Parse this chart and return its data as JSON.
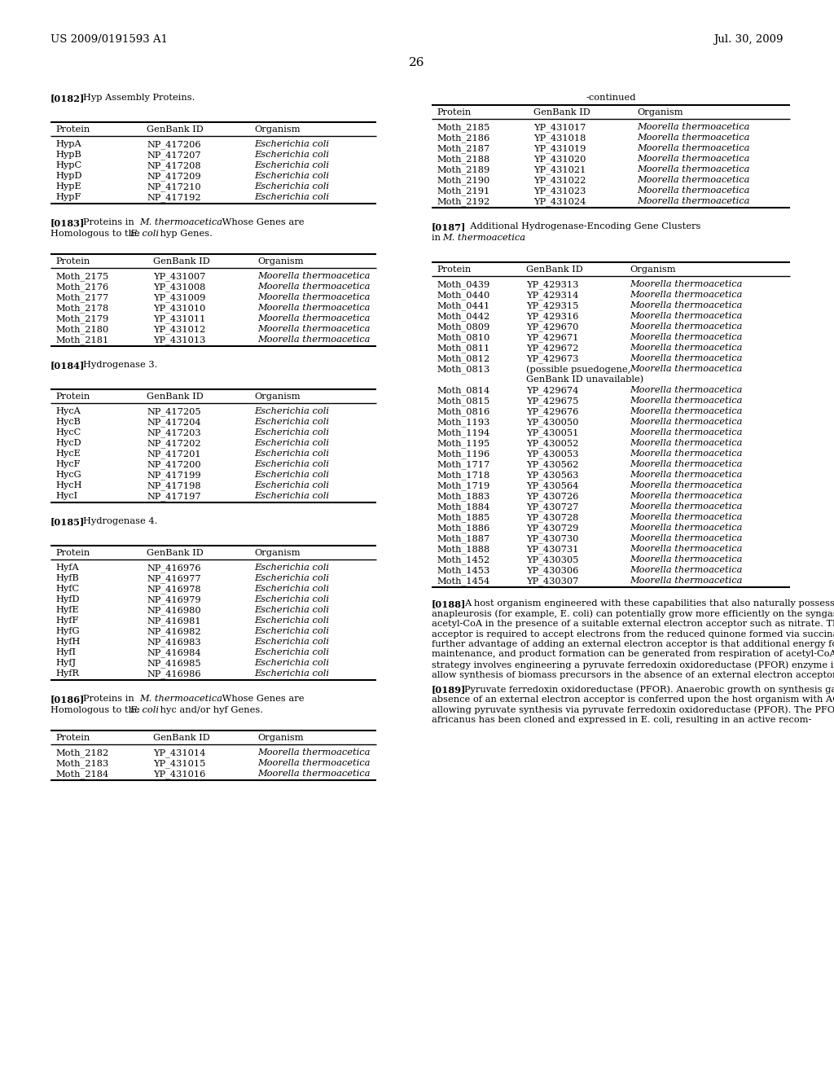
{
  "page_header_left": "US 2009/0191593 A1",
  "page_header_right": "Jul. 30, 2009",
  "page_number": "26",
  "section_182_label": "[0182]",
  "section_182_text": "Hyp Assembly Proteins.",
  "table1_headers": [
    "Protein",
    "GenBank ID",
    "Organism"
  ],
  "table1_rows": [
    [
      "HypA",
      "NP_417206",
      "Escherichia coli"
    ],
    [
      "HypB",
      "NP_417207",
      "Escherichia coli"
    ],
    [
      "HypC",
      "NP_417208",
      "Escherichia coli"
    ],
    [
      "HypD",
      "NP_417209",
      "Escherichia coli"
    ],
    [
      "HypE",
      "NP_417210",
      "Escherichia coli"
    ],
    [
      "HypF",
      "NP_417192",
      "Escherichia coli"
    ]
  ],
  "section_183_parts": [
    {
      "text": "[0183]",
      "style": "bold"
    },
    {
      "text": "  Proteins in ",
      "style": "normal"
    },
    {
      "text": "M. thermoacetica",
      "style": "italic"
    },
    {
      "text": " Whose Genes are",
      "style": "normal"
    }
  ],
  "section_183_line2_parts": [
    {
      "text": "Homologous to the ",
      "style": "normal"
    },
    {
      "text": "E. coli",
      "style": "italic"
    },
    {
      "text": " hyp Genes.",
      "style": "normal"
    }
  ],
  "table2_headers": [
    "Protein",
    "GenBank ID",
    "Organism"
  ],
  "table2_rows": [
    [
      "Moth_2175",
      "YP_431007",
      "Moorella thermoacetica"
    ],
    [
      "Moth_2176",
      "YP_431008",
      "Moorella thermoacetica"
    ],
    [
      "Moth_2177",
      "YP_431009",
      "Moorella thermoacetica"
    ],
    [
      "Moth_2178",
      "YP_431010",
      "Moorella thermoacetica"
    ],
    [
      "Moth_2179",
      "YP_431011",
      "Moorella thermoacetica"
    ],
    [
      "Moth_2180",
      "YP_431012",
      "Moorella thermoacetica"
    ],
    [
      "Moth_2181",
      "YP_431013",
      "Moorella thermoacetica"
    ]
  ],
  "section_184_label": "[0184]",
  "section_184_text": "Hydrogenase 3.",
  "table3_headers": [
    "Protein",
    "GenBank ID",
    "Organism"
  ],
  "table3_rows": [
    [
      "HycA",
      "NP_417205",
      "Escherichia coli"
    ],
    [
      "HycB",
      "NP_417204",
      "Escherichia coli"
    ],
    [
      "HycC",
      "NP_417203",
      "Escherichia coli"
    ],
    [
      "HycD",
      "NP_417202",
      "Escherichia coli"
    ],
    [
      "HycE",
      "NP_417201",
      "Escherichia coli"
    ],
    [
      "HycF",
      "NP_417200",
      "Escherichia coli"
    ],
    [
      "HycG",
      "NP_417199",
      "Escherichia coli"
    ],
    [
      "HycH",
      "NP_417198",
      "Escherichia coli"
    ],
    [
      "HycI",
      "NP_417197",
      "Escherichia coli"
    ]
  ],
  "section_185_label": "[0185]",
  "section_185_text": "Hydrogenase 4.",
  "table4_headers": [
    "Protein",
    "GenBank ID",
    "Organism"
  ],
  "table4_rows": [
    [
      "HyfA",
      "NP_416976",
      "Escherichia coli"
    ],
    [
      "HyfB",
      "NP_416977",
      "Escherichia coli"
    ],
    [
      "HyfC",
      "NP_416978",
      "Escherichia coli"
    ],
    [
      "HyfD",
      "NP_416979",
      "Escherichia coli"
    ],
    [
      "HyfE",
      "NP_416980",
      "Escherichia coli"
    ],
    [
      "HyfF",
      "NP_416981",
      "Escherichia coli"
    ],
    [
      "HyfG",
      "NP_416982",
      "Escherichia coli"
    ],
    [
      "HyfH",
      "NP_416983",
      "Escherichia coli"
    ],
    [
      "HyfI",
      "NP_416984",
      "Escherichia coli"
    ],
    [
      "HyfJ",
      "NP_416985",
      "Escherichia coli"
    ],
    [
      "HyfR",
      "NP_416986",
      "Escherichia coli"
    ]
  ],
  "section_186_parts": [
    {
      "text": "[0186]",
      "style": "bold"
    },
    {
      "text": "  Proteins in ",
      "style": "normal"
    },
    {
      "text": "M. thermoacetica",
      "style": "italic"
    },
    {
      "text": " Whose Genes are",
      "style": "normal"
    }
  ],
  "section_186_line2_parts": [
    {
      "text": "Homologous to the ",
      "style": "normal"
    },
    {
      "text": "E. coli",
      "style": "italic"
    },
    {
      "text": " hyc and/or hyf Genes.",
      "style": "normal"
    }
  ],
  "table5_headers": [
    "Protein",
    "GenBank ID",
    "Organism"
  ],
  "table5_rows": [
    [
      "Moth_2182",
      "YP_431014",
      "Moorella thermoacetica"
    ],
    [
      "Moth_2183",
      "YP_431015",
      "Moorella thermoacetica"
    ],
    [
      "Moth_2184",
      "YP_431016",
      "Moorella thermoacetica"
    ]
  ],
  "right_header": "-continued",
  "right_table_continued_headers": [
    "Protein",
    "GenBank ID",
    "Organism"
  ],
  "right_table_continued_rows": [
    [
      "Moth_2185",
      "YP_431017",
      "Moorella thermoacetica"
    ],
    [
      "Moth_2186",
      "YP_431018",
      "Moorella thermoacetica"
    ],
    [
      "Moth_2187",
      "YP_431019",
      "Moorella thermoacetica"
    ],
    [
      "Moth_2188",
      "YP_431020",
      "Moorella thermoacetica"
    ],
    [
      "Moth_2189",
      "YP_431021",
      "Moorella thermoacetica"
    ],
    [
      "Moth_2190",
      "YP_431022",
      "Moorella thermoacetica"
    ],
    [
      "Moth_2191",
      "YP_431023",
      "Moorella thermoacetica"
    ],
    [
      "Moth_2192",
      "YP_431024",
      "Moorella thermoacetica"
    ]
  ],
  "section_187_parts_line1": [
    {
      "text": "[0187]",
      "style": "bold"
    },
    {
      "text": "  Additional Hydrogenase-Encoding Gene Clusters",
      "style": "normal"
    }
  ],
  "section_187_parts_line2": [
    {
      "text": "in ",
      "style": "normal"
    },
    {
      "text": "M. thermoacetica",
      "style": "italic"
    },
    {
      "text": ".",
      "style": "normal"
    }
  ],
  "right_table2_headers": [
    "Protein",
    "GenBank ID",
    "Organism"
  ],
  "right_table2_rows": [
    [
      "Moth_0439",
      "YP_429313",
      "Moorella thermoacetica"
    ],
    [
      "Moth_0440",
      "YP_429314",
      "Moorella thermoacetica"
    ],
    [
      "Moth_0441",
      "YP_429315",
      "Moorella thermoacetica"
    ],
    [
      "Moth_0442",
      "YP_429316",
      "Moorella thermoacetica"
    ],
    [
      "Moth_0809",
      "YP_429670",
      "Moorella thermoacetica"
    ],
    [
      "Moth_0810",
      "YP_429671",
      "Moorella thermoacetica"
    ],
    [
      "Moth_0811",
      "YP_429672",
      "Moorella thermoacetica"
    ],
    [
      "Moth_0812",
      "YP_429673",
      "Moorella thermoacetica"
    ],
    [
      "Moth_0813",
      "(possible psuedogene,\nGenBank ID unavailable)",
      "Moorella thermoacetica"
    ],
    [
      "Moth_0814",
      "YP_429674",
      "Moorella thermoacetica"
    ],
    [
      "Moth_0815",
      "YP_429675",
      "Moorella thermoacetica"
    ],
    [
      "Moth_0816",
      "YP_429676",
      "Moorella thermoacetica"
    ],
    [
      "Moth_1193",
      "YP_430050",
      "Moorella thermoacetica"
    ],
    [
      "Moth_1194",
      "YP_430051",
      "Moorella thermoacetica"
    ],
    [
      "Moth_1195",
      "YP_430052",
      "Moorella thermoacetica"
    ],
    [
      "Moth_1196",
      "YP_430053",
      "Moorella thermoacetica"
    ],
    [
      "Moth_1717",
      "YP_430562",
      "Moorella thermoacetica"
    ],
    [
      "Moth_1718",
      "YP_430563",
      "Moorella thermoacetica"
    ],
    [
      "Moth_1719",
      "YP_430564",
      "Moorella thermoacetica"
    ],
    [
      "Moth_1883",
      "YP_430726",
      "Moorella thermoacetica"
    ],
    [
      "Moth_1884",
      "YP_430727",
      "Moorella thermoacetica"
    ],
    [
      "Moth_1885",
      "YP_430728",
      "Moorella thermoacetica"
    ],
    [
      "Moth_1886",
      "YP_430729",
      "Moorella thermoacetica"
    ],
    [
      "Moth_1887",
      "YP_430730",
      "Moorella thermoacetica"
    ],
    [
      "Moth_1888",
      "YP_430731",
      "Moorella thermoacetica"
    ],
    [
      "Moth_1452",
      "YP_430305",
      "Moorella thermoacetica"
    ],
    [
      "Moth_1453",
      "YP_430306",
      "Moorella thermoacetica"
    ],
    [
      "Moth_1454",
      "YP_430307",
      "Moorella thermoacetica"
    ]
  ],
  "section_188_label": "[0188]",
  "section_188_text": "A host organism engineered with these capabilities that also naturally possesses the capability for anapleurosis (for example, E. coli) can potentially grow more efficiently on the syngas-generated acetyl-CoA in the presence of a suitable external electron acceptor such as nitrate. This electron acceptor is required to accept electrons from the reduced quinone formed via succinate dehydrogenase. A further advantage of adding an external electron acceptor is that additional energy for cell growth, maintenance, and product formation can be generated from respiration of acetyl-CoA. An alternative strategy involves engineering a pyruvate ferredoxin oxidoreductase (PFOR) enzyme into the strain to allow synthesis of biomass precursors in the absence of an external electron acceptor.",
  "section_189_label": "[0189]",
  "section_189_text": "Pyruvate ferredoxin oxidoreductase (PFOR). Anaerobic growth on synthesis gas and methanol in the absence of an external electron acceptor is conferred upon the host organism with ACS/CODH activity by allowing pyruvate synthesis via pyruvate ferredoxin oxidoreductase (PFOR). The PFOR from Desulfovibrio africanus has been cloned and expressed in E. coli, resulting in an active recom-"
}
